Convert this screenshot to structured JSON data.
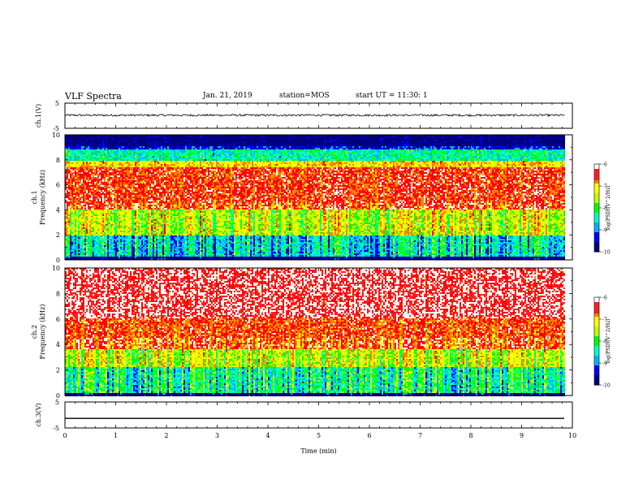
{
  "header": {
    "title": "VLF Spectra",
    "date": "Jan. 21, 2019",
    "station": "station=MOS",
    "start": "start UT =  11:30: 1"
  },
  "chart_data": [
    {
      "type": "line",
      "name": "ch1-waveform",
      "ylabel": "ch.1(V)",
      "ylim": [
        -5,
        5
      ],
      "yticks": [
        "5",
        "-5"
      ],
      "xlim": [
        0,
        10
      ],
      "signal_level": 0.2,
      "noise_amplitude": 0.4
    },
    {
      "type": "heatmap",
      "name": "ch1-spectrogram",
      "ylabel": "ch.1\nFrequency (kHz)",
      "ylabel_top": "ch.1",
      "ylabel_bottom": "Frequency (kHz)",
      "yticks": [
        "0",
        "2",
        "4",
        "6",
        "8",
        "10"
      ],
      "ylim": [
        0,
        10
      ],
      "xlim": [
        0,
        9.85
      ],
      "colorbar": {
        "label": "log(PSD)(V^2/Hz)",
        "ticks": [
          "-6",
          "-7",
          "-8",
          "-9",
          "-10"
        ],
        "range": [
          -10,
          -6
        ]
      },
      "bands": [
        {
          "f_from": 0,
          "f_to": 0.2,
          "psd": -10
        },
        {
          "f_from": 0.2,
          "f_to": 2.0,
          "psd": -8.6
        },
        {
          "f_from": 2.0,
          "f_to": 4.0,
          "psd": -7.4
        },
        {
          "f_from": 4.0,
          "f_to": 7.4,
          "psd": -6.3
        },
        {
          "f_from": 7.4,
          "f_to": 7.9,
          "psd": -7.0
        },
        {
          "f_from": 7.9,
          "f_to": 8.8,
          "psd": -8.4
        },
        {
          "f_from": 8.8,
          "f_to": 9.1,
          "psd": -9.4
        },
        {
          "f_from": 9.1,
          "f_to": 10,
          "psd": -10
        }
      ]
    },
    {
      "type": "heatmap",
      "name": "ch2-spectrogram",
      "ylabel": "ch.2\nFrequency (kHz)",
      "ylabel_top": "ch.2",
      "ylabel_bottom": "Frequency (kHz)",
      "yticks": [
        "0",
        "2",
        "4",
        "6",
        "8",
        "10"
      ],
      "ylim": [
        0,
        10
      ],
      "xlim": [
        0,
        9.85
      ],
      "colorbar": {
        "label": "log(PSD)(V^2/Hz)",
        "ticks": [
          "-6",
          "-7",
          "-8",
          "-9",
          "-10"
        ],
        "range": [
          -10,
          -6
        ]
      },
      "bands": [
        {
          "f_from": 0,
          "f_to": 0.15,
          "psd": -9.8
        },
        {
          "f_from": 0.15,
          "f_to": 2.2,
          "psd": -8.3
        },
        {
          "f_from": 2.2,
          "f_to": 3.6,
          "psd": -7.4
        },
        {
          "f_from": 3.6,
          "f_to": 6.0,
          "psd": -6.4
        },
        {
          "f_from": 6.0,
          "f_to": 10,
          "psd": -5.8
        }
      ]
    },
    {
      "type": "line",
      "name": "ch3-waveform",
      "ylabel": "ch.3(V)",
      "ylim": [
        -5,
        5
      ],
      "yticks": [
        "5",
        "-5"
      ],
      "xlim": [
        0,
        10
      ],
      "signal_level": -1.3,
      "noise_amplitude": 0.0
    }
  ],
  "xaxis": {
    "label": "Time (min)",
    "ticks": [
      "0",
      "1",
      "2",
      "3",
      "4",
      "5",
      "6",
      "7",
      "8",
      "9",
      "10"
    ],
    "range": [
      0,
      10
    ]
  },
  "colors": {
    "colormap": [
      "#000080",
      "#0000ff",
      "#00b0ff",
      "#00ffc0",
      "#00ff00",
      "#c0ff00",
      "#ffff00",
      "#ff8000",
      "#ff0000",
      "#ffffff"
    ]
  }
}
